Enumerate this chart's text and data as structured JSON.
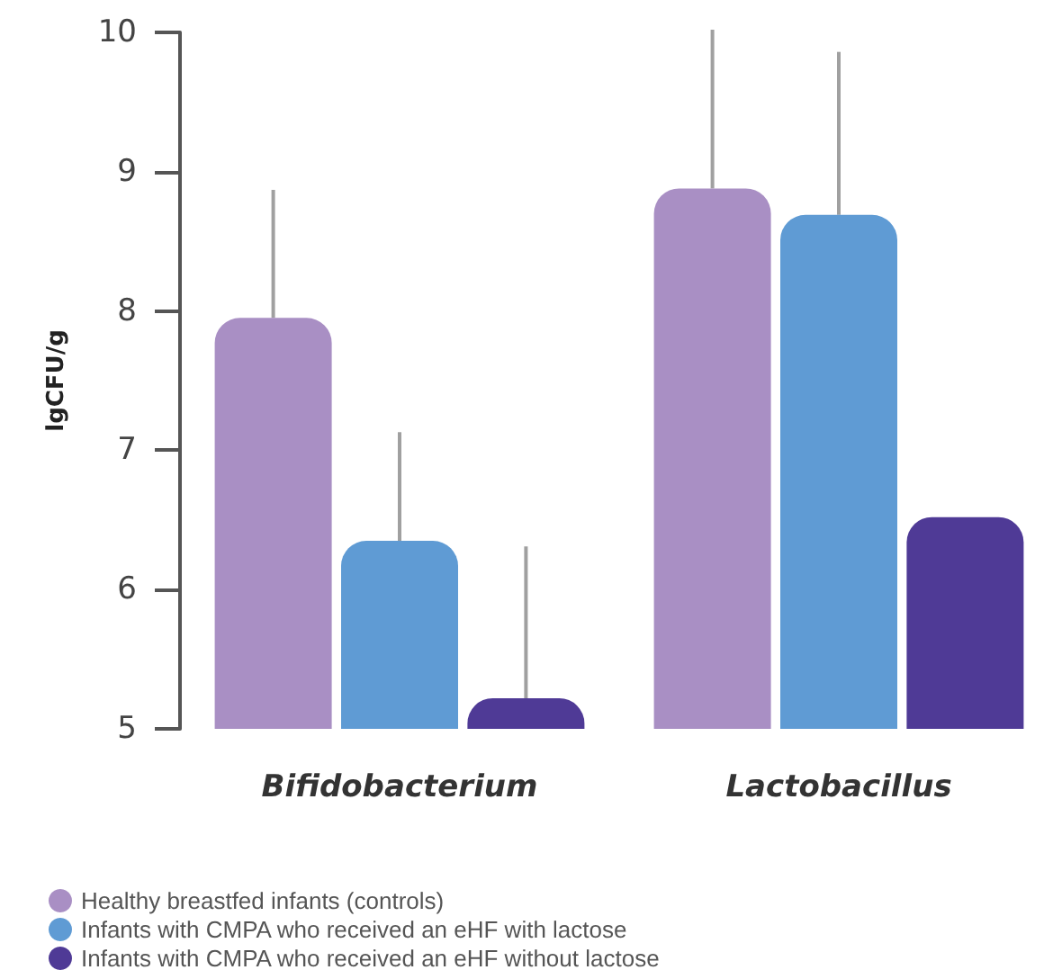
{
  "chart_data": {
    "type": "bar",
    "ylabel": "lgCFU/g",
    "categories": [
      "Bifidobacterium",
      "Lactobacillus"
    ],
    "series": [
      {
        "name": "Healthy breastfed infants (controls)",
        "color": "#a98fc4",
        "values": [
          7.95,
          8.88
        ],
        "errors": [
          [
            7.95,
            8.87
          ],
          [
            8.88,
            10.02
          ]
        ]
      },
      {
        "name": "Infants with CMPA who received an eHF with lactose",
        "color": "#5f9bd4",
        "values": [
          6.35,
          8.69
        ],
        "errors": [
          [
            6.35,
            7.13
          ],
          [
            8.69,
            9.86
          ]
        ]
      },
      {
        "name": "Infants with CMPA who received an eHF without lactose",
        "color": "#4f3a96",
        "values": [
          5.22,
          6.52
        ],
        "errors": [
          [
            5.22,
            6.31
          ],
          null
        ]
      }
    ],
    "ylim": [
      5,
      10
    ],
    "yticks": [
      5,
      6,
      7,
      8,
      9,
      10
    ],
    "grid": false,
    "legend": "bottom left"
  }
}
